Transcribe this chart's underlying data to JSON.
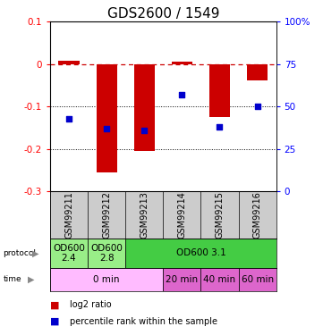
{
  "title": "GDS2600 / 1549",
  "samples": [
    "GSM99211",
    "GSM99212",
    "GSM99213",
    "GSM99214",
    "GSM99215",
    "GSM99216"
  ],
  "log2_ratio": [
    0.008,
    -0.255,
    -0.205,
    0.005,
    -0.125,
    -0.038
  ],
  "percentile_rank": [
    43,
    37,
    36,
    57,
    38,
    50
  ],
  "ylim_left": [
    -0.3,
    0.1
  ],
  "ylim_right": [
    0,
    100
  ],
  "yticks_left": [
    0.1,
    0.0,
    -0.1,
    -0.2,
    -0.3
  ],
  "yticklabels_left": [
    "0.1",
    "0",
    "-0.1",
    "-0.2",
    "-0.3"
  ],
  "yticks_right": [
    100,
    75,
    50,
    25,
    0
  ],
  "yticklabels_right": [
    "100%",
    "75",
    "50",
    "25",
    "0"
  ],
  "bar_color": "#cc0000",
  "dot_color": "#0000cc",
  "bg_color": "#ffffff",
  "sample_bg": "#cccccc",
  "protocol_data": [
    [
      0,
      1,
      "#99ee88",
      "OD600\n2.4"
    ],
    [
      1,
      2,
      "#99ee88",
      "OD600\n2.8"
    ],
    [
      2,
      6,
      "#44cc44",
      "OD600 3.1"
    ]
  ],
  "time_data": [
    [
      0,
      3,
      "#ffbbff",
      "0 min"
    ],
    [
      3,
      4,
      "#dd66cc",
      "20 min"
    ],
    [
      4,
      5,
      "#dd66cc",
      "40 min"
    ],
    [
      5,
      6,
      "#dd66cc",
      "60 min"
    ]
  ],
  "legend_red_label": "log2 ratio",
  "legend_blue_label": "percentile rank within the sample",
  "title_fontsize": 11,
  "tick_fontsize": 7.5,
  "sample_fontsize": 7,
  "row_fontsize": 7.5
}
